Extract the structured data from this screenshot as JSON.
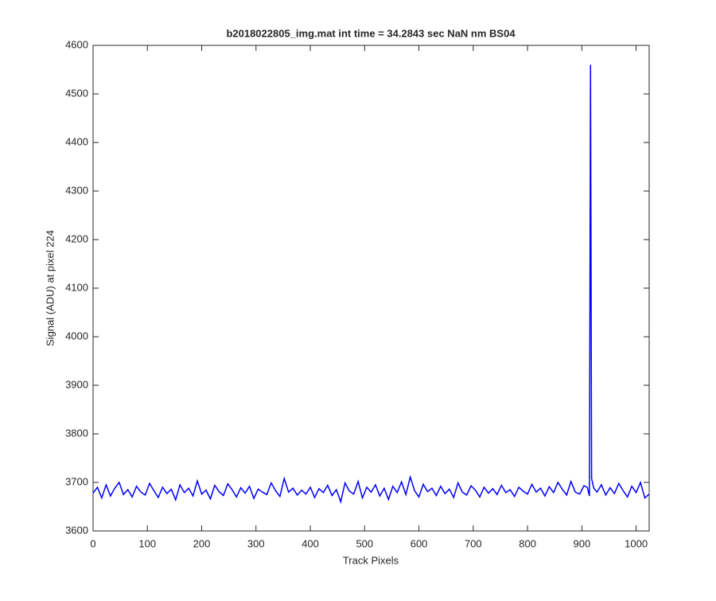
{
  "chart_data": {
    "type": "line",
    "title": "b2018022805_img.mat int time = 34.2843 sec  NaN nm BS04",
    "xlabel": "Track Pixels",
    "ylabel": "Signal (ADU) at pixel 224",
    "x": [
      0,
      8,
      16,
      24,
      32,
      40,
      48,
      56,
      64,
      72,
      80,
      88,
      96,
      104,
      112,
      120,
      128,
      136,
      144,
      152,
      160,
      168,
      176,
      184,
      192,
      200,
      208,
      216,
      224,
      232,
      240,
      248,
      256,
      264,
      272,
      280,
      288,
      296,
      304,
      312,
      320,
      328,
      336,
      344,
      352,
      360,
      368,
      376,
      384,
      392,
      400,
      408,
      416,
      424,
      432,
      440,
      448,
      456,
      464,
      472,
      480,
      488,
      496,
      504,
      512,
      520,
      528,
      536,
      544,
      552,
      560,
      568,
      576,
      584,
      592,
      600,
      608,
      616,
      624,
      632,
      640,
      648,
      656,
      664,
      672,
      680,
      688,
      696,
      704,
      712,
      720,
      728,
      736,
      744,
      752,
      760,
      768,
      776,
      784,
      792,
      800,
      808,
      816,
      824,
      832,
      840,
      848,
      856,
      864,
      872,
      880,
      888,
      896,
      904,
      910,
      914,
      916,
      918,
      922,
      928,
      936,
      944,
      952,
      960,
      968,
      976,
      984,
      992,
      1000,
      1008,
      1016,
      1024
    ],
    "series": [
      {
        "color": "#0000ff",
        "values": [
          3678,
          3690,
          3668,
          3695,
          3672,
          3688,
          3700,
          3675,
          3685,
          3670,
          3692,
          3680,
          3674,
          3698,
          3683,
          3669,
          3690,
          3677,
          3686,
          3664,
          3695,
          3679,
          3688,
          3672,
          3703,
          3676,
          3684,
          3666,
          3694,
          3681,
          3673,
          3697,
          3685,
          3670,
          3689,
          3678,
          3692,
          3667,
          3686,
          3680,
          3675,
          3699,
          3683,
          3671,
          3708,
          3680,
          3688,
          3674,
          3684,
          3676,
          3690,
          3669,
          3687,
          3679,
          3694,
          3673,
          3685,
          3660,
          3699,
          3682,
          3676,
          3702,
          3668,
          3690,
          3680,
          3695,
          3672,
          3688,
          3665,
          3692,
          3679,
          3701,
          3675,
          3711,
          3683,
          3670,
          3696,
          3681,
          3688,
          3673,
          3692,
          3677,
          3686,
          3669,
          3699,
          3680,
          3674,
          3693,
          3684,
          3670,
          3690,
          3678,
          3687,
          3675,
          3694,
          3679,
          3685,
          3671,
          3690,
          3682,
          3676,
          3696,
          3680,
          3688,
          3672,
          3691,
          3679,
          3700,
          3686,
          3674,
          3702,
          3680,
          3676,
          3693,
          3690,
          3672,
          4560,
          3708,
          3688,
          3680,
          3695,
          3674,
          3689,
          3677,
          3698,
          3683,
          3670,
          3692,
          3679,
          3700,
          3668,
          3676
        ]
      }
    ],
    "xlim": [
      0,
      1024
    ],
    "ylim": [
      3600,
      4600
    ],
    "xticks": [
      0,
      100,
      200,
      300,
      400,
      500,
      600,
      700,
      800,
      900,
      1000
    ],
    "yticks": [
      3600,
      3700,
      3800,
      3900,
      4000,
      4100,
      4200,
      4300,
      4400,
      4500,
      4600
    ],
    "grid": false
  }
}
